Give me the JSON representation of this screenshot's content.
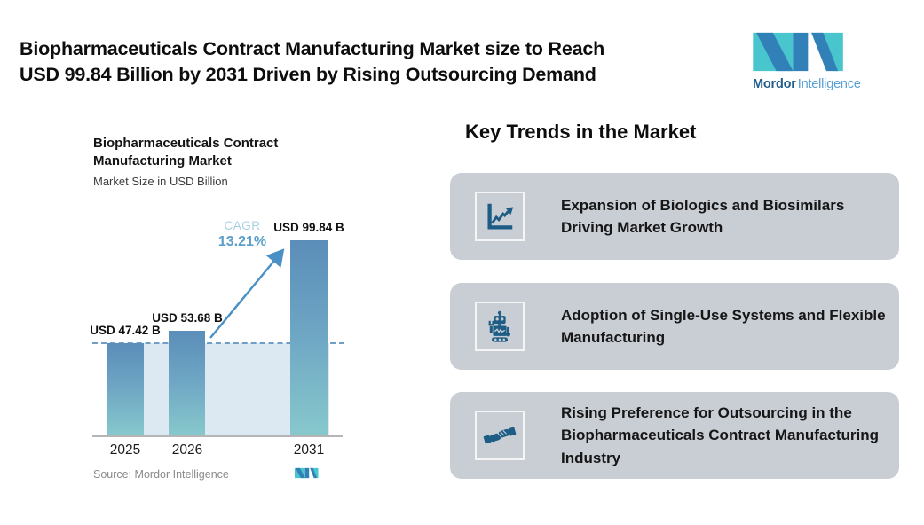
{
  "header": {
    "title_line1": "Biopharmaceuticals Contract Manufacturing Market size to Reach",
    "title_line2": "USD 99.84 Billion by 2031 Driven by Rising Outsourcing Demand",
    "brand_bold": "Mordor",
    "brand_light": "Intelligence"
  },
  "chart": {
    "title_line1": "Biopharmaceuticals Contract",
    "title_line2": "Manufacturing Market",
    "subtitle": "Market Size in USD Billion",
    "cagr_label": "CAGR",
    "cagr_value": "13.21%",
    "source": "Source: Mordor Intelligence",
    "bars": [
      {
        "year": "2025",
        "label": "USD 47.42 B"
      },
      {
        "year": "2026",
        "label": "USD 53.68 B"
      },
      {
        "year": "2031",
        "label": "USD 99.84 B"
      }
    ]
  },
  "chart_data": {
    "type": "bar",
    "title": "Biopharmaceuticals Contract Manufacturing Market",
    "subtitle": "Market Size in USD Billion",
    "categories": [
      "2025",
      "2026",
      "2031"
    ],
    "values": [
      47.42,
      53.68,
      99.84
    ],
    "data_labels": [
      "USD 47.42 B",
      "USD 53.68 B",
      "USD 99.84 B"
    ],
    "xlabel": "",
    "ylabel": "Market Size in USD Billion",
    "ylim": [
      0,
      110
    ],
    "grid": false,
    "legend_position": "none",
    "annotations": [
      {
        "text": "CAGR 13.21%",
        "type": "growth-arrow",
        "from_category": "2026",
        "to_category": "2031"
      },
      {
        "type": "dashed-reference-line",
        "at_value": 47.42
      }
    ],
    "source": "Source: Mordor Intelligence"
  },
  "key_trends": {
    "heading": "Key Trends in the Market",
    "cards": [
      {
        "icon": "line-chart-icon",
        "text": "Expansion of Biologics and Biosimilars Driving Market Growth"
      },
      {
        "icon": "robot-icon",
        "text": "Adoption of Single-Use Systems and Flexible Manufacturing"
      },
      {
        "icon": "handshake-icon",
        "text": "Rising Preference for Outsourcing in the Biopharmaceuticals Contract Manufacturing Industry"
      }
    ]
  },
  "colors": {
    "bar_gradient_top": "#5b8eb9",
    "bar_gradient_bottom": "#87c8cc",
    "band_fill": "#dce9f2",
    "dashed_line": "#6f9ec7",
    "arrow_blue": "#4a90c4",
    "cagr_label_blue": "#a9cfe3",
    "cagr_value_blue": "#5b9ec9",
    "card_background": "#c9cdd4",
    "icon_dark_blue": "#1d5c85",
    "logo_teal": "#49c5cd",
    "logo_blue": "#3181b8",
    "source_gray": "#8a8a8a"
  }
}
